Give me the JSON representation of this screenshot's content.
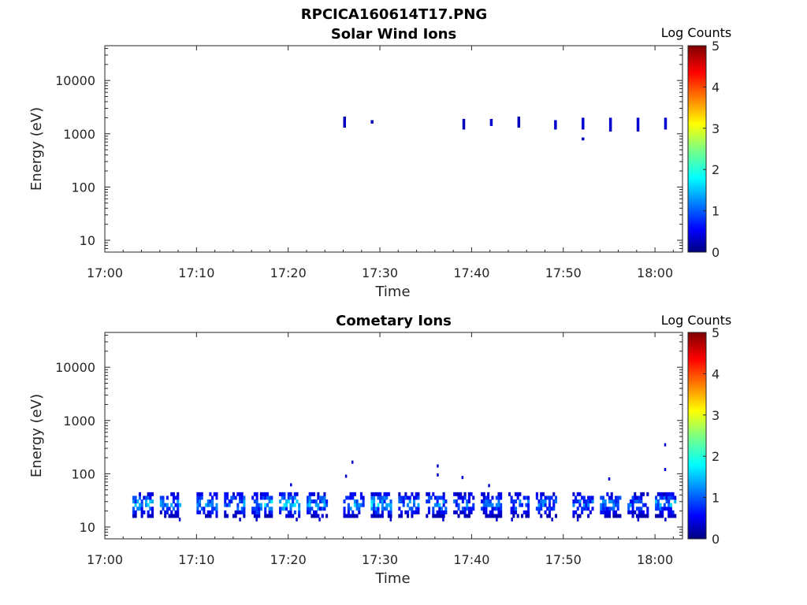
{
  "figure_title": "RPCICA160614T17.PNG",
  "chart_data": [
    {
      "type": "heatmap",
      "title": "Solar Wind Ions",
      "xlabel": "Time",
      "ylabel": "Energy (eV)",
      "x_ticks": [
        "17:00",
        "17:10",
        "17:20",
        "17:30",
        "17:40",
        "17:50",
        "18:00"
      ],
      "x_range_minutes": [
        0,
        63
      ],
      "y_ticks": [
        "10",
        "100",
        "1000",
        "10000"
      ],
      "y_scale": "log",
      "ylim": [
        6,
        45000
      ],
      "colorbar": {
        "title": "Log Counts",
        "ticks": [
          "0",
          "1",
          "2",
          "3",
          "4",
          "5"
        ],
        "range": [
          0,
          5
        ],
        "colormap": "jet"
      },
      "cells": [
        {
          "t": "17:26",
          "e_lo": 1300,
          "e_hi": 2100,
          "v": 0.3
        },
        {
          "t": "17:29",
          "e_lo": 1550,
          "e_hi": 1800,
          "v": 0.3
        },
        {
          "t": "17:39",
          "e_lo": 1200,
          "e_hi": 1900,
          "v": 0.3
        },
        {
          "t": "17:42",
          "e_lo": 1400,
          "e_hi": 1900,
          "v": 0.4
        },
        {
          "t": "17:45",
          "e_lo": 1300,
          "e_hi": 2100,
          "v": 0.3
        },
        {
          "t": "17:49",
          "e_lo": 1200,
          "e_hi": 1800,
          "v": 0.4
        },
        {
          "t": "17:52",
          "e_lo": 1200,
          "e_hi": 2000,
          "v": 0.4
        },
        {
          "t": "17:52",
          "e_lo": 750,
          "e_hi": 850,
          "v": 0.3
        },
        {
          "t": "17:55",
          "e_lo": 1100,
          "e_hi": 2000,
          "v": 0.4
        },
        {
          "t": "17:58",
          "e_lo": 1100,
          "e_hi": 2000,
          "v": 0.4
        },
        {
          "t": "18:01",
          "e_lo": 1200,
          "e_hi": 2000,
          "v": 0.4
        }
      ]
    },
    {
      "type": "heatmap",
      "title": "Cometary Ions",
      "xlabel": "Time",
      "ylabel": "Energy (eV)",
      "x_ticks": [
        "17:00",
        "17:10",
        "17:20",
        "17:30",
        "17:40",
        "17:50",
        "18:00"
      ],
      "x_range_minutes": [
        0,
        63
      ],
      "y_ticks": [
        "10",
        "100",
        "1000",
        "10000"
      ],
      "y_scale": "log",
      "ylim": [
        6,
        45000
      ],
      "colorbar": {
        "title": "Log Counts",
        "ticks": [
          "0",
          "1",
          "2",
          "3",
          "4",
          "5"
        ],
        "range": [
          0,
          5
        ],
        "colormap": "jet"
      },
      "bursts": [
        {
          "t": "17:03",
          "duration_min": 2.3,
          "peak": 1.6
        },
        {
          "t": "17:06",
          "duration_min": 2.3,
          "peak": 1.4
        },
        {
          "t": "17:10",
          "duration_min": 2.3,
          "peak": 1.5
        },
        {
          "t": "17:13",
          "duration_min": 2.3,
          "peak": 1.5
        },
        {
          "t": "17:16",
          "duration_min": 2.3,
          "peak": 1.8
        },
        {
          "t": "17:19",
          "duration_min": 2.3,
          "peak": 1.8
        },
        {
          "t": "17:22",
          "duration_min": 2.3,
          "peak": 1.7
        },
        {
          "t": "17:26",
          "duration_min": 2.3,
          "peak": 1.6
        },
        {
          "t": "17:29",
          "duration_min": 2.3,
          "peak": 1.8
        },
        {
          "t": "17:32",
          "duration_min": 2.3,
          "peak": 1.4
        },
        {
          "t": "17:35",
          "duration_min": 2.3,
          "peak": 1.5
        },
        {
          "t": "17:38",
          "duration_min": 2.3,
          "peak": 1.3
        },
        {
          "t": "17:41",
          "duration_min": 2.3,
          "peak": 1.3
        },
        {
          "t": "17:44",
          "duration_min": 2.3,
          "peak": 1.4
        },
        {
          "t": "17:47",
          "duration_min": 2.3,
          "peak": 1.3
        },
        {
          "t": "17:51",
          "duration_min": 2.3,
          "peak": 1.3
        },
        {
          "t": "17:54",
          "duration_min": 2.3,
          "peak": 1.4
        },
        {
          "t": "17:57",
          "duration_min": 2.3,
          "peak": 1.3
        },
        {
          "t": "18:00",
          "duration_min": 2.3,
          "peak": 1.6
        }
      ],
      "burst_energy_range_eV": [
        15,
        45
      ],
      "sparse_points": [
        {
          "t": "17:20.2",
          "e": 62
        },
        {
          "t": "17:26.2",
          "e": 90
        },
        {
          "t": "17:26.9",
          "e": 165
        },
        {
          "t": "17:36.2",
          "e": 140
        },
        {
          "t": "17:36.2",
          "e": 95
        },
        {
          "t": "17:38.9",
          "e": 85
        },
        {
          "t": "17:41.8",
          "e": 60
        },
        {
          "t": "17:54.9",
          "e": 80
        },
        {
          "t": "18:01.0",
          "e": 350
        },
        {
          "t": "18:01.0",
          "e": 120
        }
      ]
    }
  ]
}
